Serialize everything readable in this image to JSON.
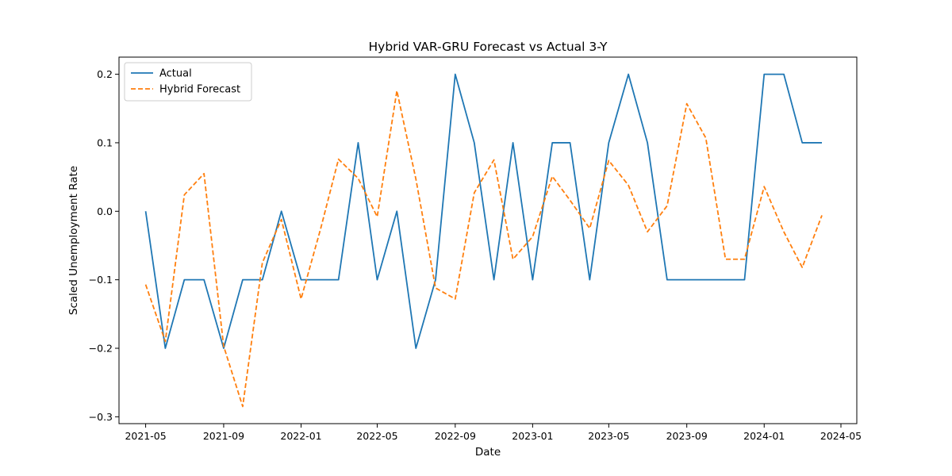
{
  "chart_data": {
    "type": "line",
    "title": "Hybrid VAR-GRU Forecast vs Actual 3-Y",
    "xlabel": "Date",
    "ylabel": "Scaled Unemployment Rate",
    "x": [
      "2021-05",
      "2021-06",
      "2021-07",
      "2021-08",
      "2021-09",
      "2021-10",
      "2021-11",
      "2021-12",
      "2022-01",
      "2022-02",
      "2022-03",
      "2022-04",
      "2022-05",
      "2022-06",
      "2022-07",
      "2022-08",
      "2022-09",
      "2022-10",
      "2022-11",
      "2022-12",
      "2023-01",
      "2023-02",
      "2023-03",
      "2023-04",
      "2023-05",
      "2023-06",
      "2023-07",
      "2023-08",
      "2023-09",
      "2023-10",
      "2023-11",
      "2023-12",
      "2024-01",
      "2024-02",
      "2024-03",
      "2024-04"
    ],
    "series": [
      {
        "name": "Actual",
        "color": "#1f77b4",
        "style": "solid",
        "values": [
          0.0,
          -0.2,
          -0.1,
          -0.1,
          -0.2,
          -0.1,
          -0.1,
          0.0,
          -0.1,
          -0.1,
          -0.1,
          0.1,
          -0.1,
          0.0,
          -0.2,
          -0.1,
          0.2,
          0.1,
          -0.1,
          0.1,
          -0.1,
          0.1,
          0.1,
          -0.1,
          0.1,
          0.2,
          0.1,
          -0.1,
          -0.1,
          -0.1,
          -0.1,
          -0.1,
          0.2,
          0.2,
          0.1,
          0.1
        ]
      },
      {
        "name": "Hybrid Forecast",
        "color": "#ff7f0e",
        "style": "dashed",
        "values": [
          -0.107,
          -0.19,
          0.024,
          0.055,
          -0.197,
          -0.285,
          -0.075,
          -0.012,
          -0.128,
          -0.025,
          0.076,
          0.048,
          -0.008,
          0.176,
          0.047,
          -0.112,
          -0.128,
          0.027,
          0.075,
          -0.07,
          -0.037,
          0.051,
          0.016,
          -0.025,
          0.074,
          0.038,
          -0.03,
          0.008,
          0.157,
          0.107,
          -0.07,
          -0.07,
          0.036,
          -0.03,
          -0.082,
          -0.006
        ]
      }
    ],
    "xticks": [
      "2021-05",
      "2021-09",
      "2022-01",
      "2022-05",
      "2022-09",
      "2023-01",
      "2023-05",
      "2023-09",
      "2024-01",
      "2024-05"
    ],
    "yticks": [
      -0.3,
      -0.2,
      -0.1,
      0.0,
      0.1,
      0.2
    ],
    "ytick_labels": [
      "−0.3",
      "−0.2",
      "−0.1",
      "0.0",
      "0.1",
      "0.2"
    ],
    "xlim": [
      "2021-03-20",
      "2024-05-26"
    ],
    "ylim": [
      -0.31,
      0.225
    ],
    "grid": false,
    "legend": "upper-left"
  }
}
